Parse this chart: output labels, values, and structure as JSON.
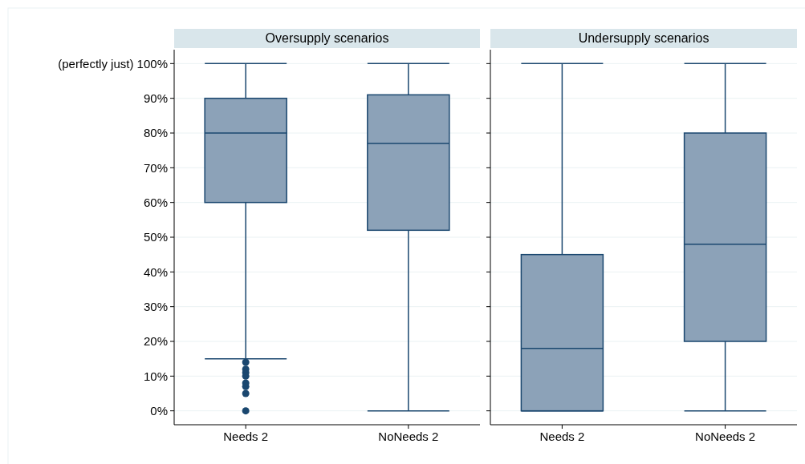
{
  "chart_data": [
    {
      "type": "box",
      "title": "Oversupply scenarios",
      "categories": [
        "Needs 2",
        "NoNeeds 2"
      ],
      "color": "#8ca2b8",
      "ylim": [
        -4,
        104
      ],
      "yticks": [
        {
          "value": 0,
          "label": "0%"
        },
        {
          "value": 10,
          "label": "10%"
        },
        {
          "value": 20,
          "label": "20%"
        },
        {
          "value": 30,
          "label": "30%"
        },
        {
          "value": 40,
          "label": "40%"
        },
        {
          "value": 50,
          "label": "50%"
        },
        {
          "value": 60,
          "label": "60%"
        },
        {
          "value": 70,
          "label": "70%"
        },
        {
          "value": 80,
          "label": "80%"
        },
        {
          "value": 90,
          "label": "90%"
        },
        {
          "value": 100,
          "label": "(perfectly just) 100%"
        }
      ],
      "grid": "y",
      "boxes": [
        {
          "low": 15,
          "q1": 60,
          "median": 80,
          "q3": 90,
          "high": 100,
          "outliers": [
            0,
            5,
            7,
            8,
            10,
            11,
            12,
            14
          ]
        },
        {
          "low": 0,
          "q1": 52,
          "median": 77,
          "q3": 91,
          "high": 100
        }
      ]
    },
    {
      "type": "box",
      "title": "Undersupply scenarios",
      "categories": [
        "Needs 2",
        "NoNeeds 2"
      ],
      "color": "#8ca2b8",
      "ylim": [
        -4,
        104
      ],
      "yticks": [
        0,
        10,
        20,
        30,
        40,
        50,
        60,
        70,
        80,
        90,
        100
      ],
      "grid": "y",
      "tick_labels": "x",
      "boxes": [
        {
          "low": 0,
          "q1": 0,
          "median": 18,
          "q3": 45,
          "high": 100
        },
        {
          "low": 0,
          "q1": 20,
          "median": 48,
          "q3": 80,
          "high": 100
        }
      ]
    }
  ]
}
